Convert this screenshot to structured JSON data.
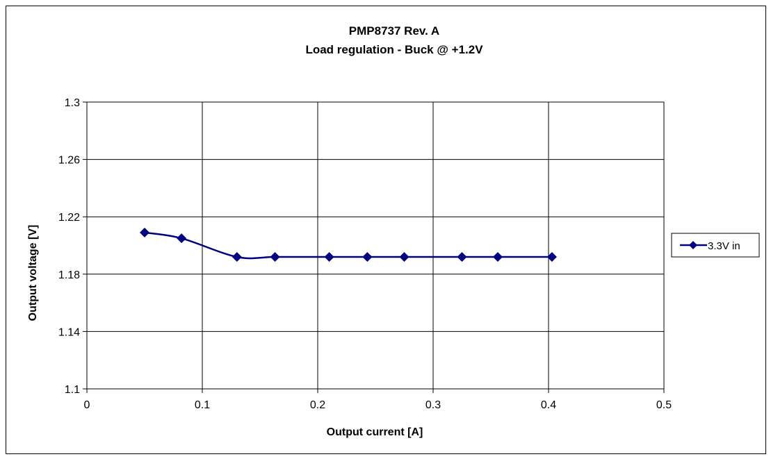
{
  "chart_data": {
    "type": "line",
    "title": "PMP8737 Rev. A",
    "subtitle": "Load regulation - Buck @ +1.2V",
    "xlabel": "Output current [A]",
    "ylabel": "Output voltage [V]",
    "xlim": [
      0,
      0.5
    ],
    "ylim": [
      1.1,
      1.3
    ],
    "xticks": [
      "0",
      "0.1",
      "0.2",
      "0.3",
      "0.4",
      "0.5"
    ],
    "yticks": [
      "1.1",
      "1.14",
      "1.18",
      "1.22",
      "1.26",
      "1.3"
    ],
    "grid": true,
    "legend_position": "right",
    "series": [
      {
        "name": "3.3V in",
        "color": "#000080",
        "marker": "diamond",
        "smooth": true,
        "x": [
          0.05,
          0.082,
          0.13,
          0.163,
          0.21,
          0.243,
          0.275,
          0.325,
          0.356,
          0.403
        ],
        "y": [
          1.209,
          1.205,
          1.192,
          1.192,
          1.192,
          1.192,
          1.192,
          1.192,
          1.192,
          1.192
        ]
      }
    ]
  }
}
